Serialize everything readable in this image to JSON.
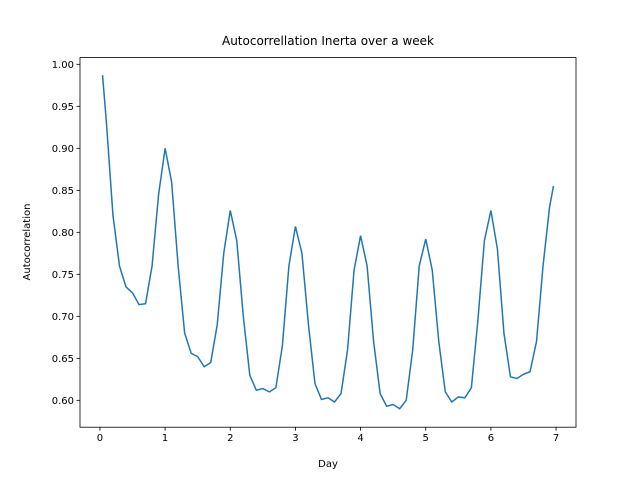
{
  "chart_data": {
    "type": "line",
    "title": "Autocorrellation Inerta over a week",
    "xlabel": "Day",
    "ylabel": "Autocorrelation",
    "x": [
      0.04,
      0.1,
      0.2,
      0.3,
      0.4,
      0.5,
      0.6,
      0.7,
      0.8,
      0.9,
      1.0,
      1.1,
      1.2,
      1.3,
      1.4,
      1.5,
      1.6,
      1.7,
      1.8,
      1.9,
      2.0,
      2.1,
      2.2,
      2.3,
      2.4,
      2.5,
      2.6,
      2.7,
      2.8,
      2.9,
      3.0,
      3.1,
      3.2,
      3.3,
      3.4,
      3.5,
      3.6,
      3.7,
      3.8,
      3.9,
      4.0,
      4.1,
      4.2,
      4.3,
      4.4,
      4.5,
      4.6,
      4.7,
      4.8,
      4.9,
      5.0,
      5.1,
      5.2,
      5.3,
      5.4,
      5.5,
      5.6,
      5.7,
      5.8,
      5.9,
      6.0,
      6.1,
      6.2,
      6.3,
      6.4,
      6.5,
      6.6,
      6.7,
      6.8,
      6.9,
      6.96
    ],
    "series": [
      {
        "color": "#1f77b4",
        "values": [
          0.987,
          0.93,
          0.82,
          0.76,
          0.735,
          0.728,
          0.714,
          0.715,
          0.76,
          0.845,
          0.9,
          0.86,
          0.76,
          0.68,
          0.656,
          0.652,
          0.64,
          0.645,
          0.69,
          0.775,
          0.826,
          0.79,
          0.7,
          0.63,
          0.612,
          0.614,
          0.61,
          0.615,
          0.665,
          0.76,
          0.807,
          0.775,
          0.69,
          0.62,
          0.601,
          0.603,
          0.598,
          0.608,
          0.66,
          0.755,
          0.796,
          0.76,
          0.67,
          0.608,
          0.593,
          0.595,
          0.59,
          0.6,
          0.66,
          0.76,
          0.792,
          0.755,
          0.67,
          0.61,
          0.598,
          0.604,
          0.603,
          0.615,
          0.695,
          0.79,
          0.826,
          0.78,
          0.68,
          0.628,
          0.626,
          0.631,
          0.634,
          0.67,
          0.76,
          0.83,
          0.855
        ]
      }
    ],
    "xlim": [
      -0.306,
      7.306
    ],
    "ylim": [
      0.568,
      1.008
    ],
    "xticks": [
      0,
      1,
      2,
      3,
      4,
      5,
      6,
      7
    ],
    "yticks": [
      {
        "value": 0.6,
        "label": "0.60"
      },
      {
        "value": 0.65,
        "label": "0.65"
      },
      {
        "value": 0.7,
        "label": "0.70"
      },
      {
        "value": 0.75,
        "label": "0.75"
      },
      {
        "value": 0.8,
        "label": "0.80"
      },
      {
        "value": 0.85,
        "label": "0.85"
      },
      {
        "value": 0.9,
        "label": "0.90"
      },
      {
        "value": 0.95,
        "label": "0.95"
      },
      {
        "value": 1.0,
        "label": "1.00"
      }
    ]
  }
}
